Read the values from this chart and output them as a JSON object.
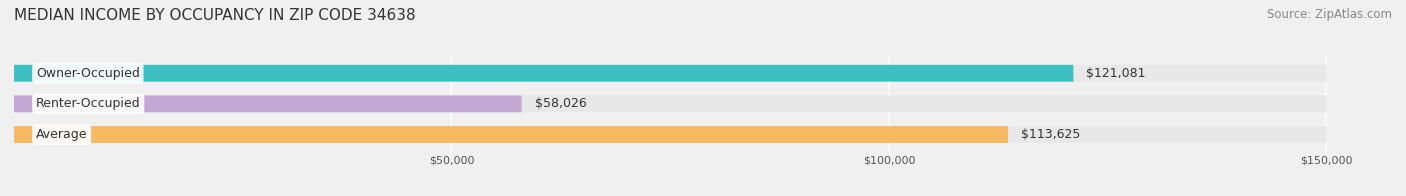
{
  "title": "MEDIAN INCOME BY OCCUPANCY IN ZIP CODE 34638",
  "source": "Source: ZipAtlas.com",
  "categories": [
    "Owner-Occupied",
    "Renter-Occupied",
    "Average"
  ],
  "values": [
    121081,
    58026,
    113625
  ],
  "bar_colors": [
    "#3dbfbf",
    "#c4a8d4",
    "#f5b863"
  ],
  "label_colors": [
    "#3dbfbf",
    "#c4a8d4",
    "#f5b863"
  ],
  "bar_labels": [
    "$121,081",
    "$58,026",
    "$113,625"
  ],
  "xlim": [
    0,
    150000
  ],
  "xticks": [
    0,
    50000,
    100000,
    150000
  ],
  "xtick_labels": [
    "$50,000",
    "$100,000",
    "$150,000"
  ],
  "background_color": "#f0f0f0",
  "bar_background_color": "#e8e8e8",
  "title_fontsize": 11,
  "source_fontsize": 8.5,
  "bar_height": 0.55,
  "label_fontsize": 9
}
